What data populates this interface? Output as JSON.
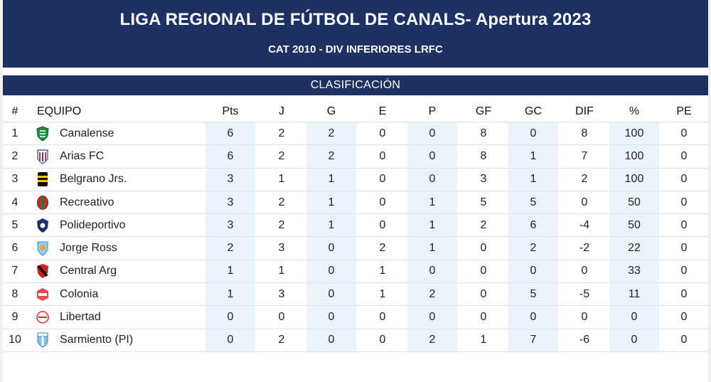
{
  "header": {
    "title": "LIGA REGIONAL DE FÚTBOL DE CANALS- Apertura 2023",
    "subtitle": "CAT 2010 - DIV INFERIORES LRFC"
  },
  "section": {
    "label": "CLASIFICACIÓN"
  },
  "columns": [
    "#",
    "EQUIPO",
    "Pts",
    "J",
    "G",
    "E",
    "P",
    "GF",
    "GC",
    "DIF",
    "%",
    "PE"
  ],
  "rows": [
    {
      "pos": "1",
      "team": "Canalense",
      "crest": "canalense-crest-icon",
      "pts": "6",
      "j": "2",
      "g": "2",
      "e": "0",
      "p": "0",
      "gf": "8",
      "gc": "0",
      "dif": "8",
      "pct": "100",
      "pe": "0"
    },
    {
      "pos": "2",
      "team": "Arias FC",
      "crest": "arias-crest-icon",
      "pts": "6",
      "j": "2",
      "g": "2",
      "e": "0",
      "p": "0",
      "gf": "8",
      "gc": "1",
      "dif": "7",
      "pct": "100",
      "pe": "0"
    },
    {
      "pos": "3",
      "team": "Belgrano Jrs.",
      "crest": "belgrano-crest-icon",
      "pts": "3",
      "j": "1",
      "g": "1",
      "e": "0",
      "p": "0",
      "gf": "3",
      "gc": "1",
      "dif": "2",
      "pct": "100",
      "pe": "0"
    },
    {
      "pos": "4",
      "team": "Recreativo",
      "crest": "recreativo-crest-icon",
      "pts": "3",
      "j": "2",
      "g": "1",
      "e": "0",
      "p": "1",
      "gf": "5",
      "gc": "5",
      "dif": "0",
      "pct": "50",
      "pe": "0"
    },
    {
      "pos": "5",
      "team": "Polideportivo",
      "crest": "polideportivo-crest-icon",
      "pts": "3",
      "j": "2",
      "g": "1",
      "e": "0",
      "p": "1",
      "gf": "2",
      "gc": "6",
      "dif": "-4",
      "pct": "50",
      "pe": "0"
    },
    {
      "pos": "6",
      "team": "Jorge Ross",
      "crest": "jorge-ross-crest-icon",
      "pts": "2",
      "j": "3",
      "g": "0",
      "e": "2",
      "p": "1",
      "gf": "0",
      "gc": "2",
      "dif": "-2",
      "pct": "22",
      "pe": "0"
    },
    {
      "pos": "7",
      "team": "Central Arg",
      "crest": "central-arg-crest-icon",
      "pts": "1",
      "j": "1",
      "g": "0",
      "e": "1",
      "p": "0",
      "gf": "0",
      "gc": "0",
      "dif": "0",
      "pct": "33",
      "pe": "0"
    },
    {
      "pos": "8",
      "team": "Colonia",
      "crest": "colonia-crest-icon",
      "pts": "1",
      "j": "3",
      "g": "0",
      "e": "1",
      "p": "2",
      "gf": "0",
      "gc": "5",
      "dif": "-5",
      "pct": "11",
      "pe": "0"
    },
    {
      "pos": "9",
      "team": "Libertad",
      "crest": "libertad-crest-icon",
      "pts": "0",
      "j": "0",
      "g": "0",
      "e": "0",
      "p": "0",
      "gf": "0",
      "gc": "0",
      "dif": "0",
      "pct": "0",
      "pe": "0"
    },
    {
      "pos": "10",
      "team": "Sarmiento (PI)",
      "crest": "sarmiento-crest-icon",
      "pts": "0",
      "j": "2",
      "g": "0",
      "e": "0",
      "p": "2",
      "gf": "1",
      "gc": "7",
      "dif": "-6",
      "pct": "0",
      "pe": "0"
    }
  ],
  "colors": {
    "header_bg": "#1d3263",
    "shaded_column_bg": "#eaf4fb",
    "header_text": "#ffffff"
  }
}
